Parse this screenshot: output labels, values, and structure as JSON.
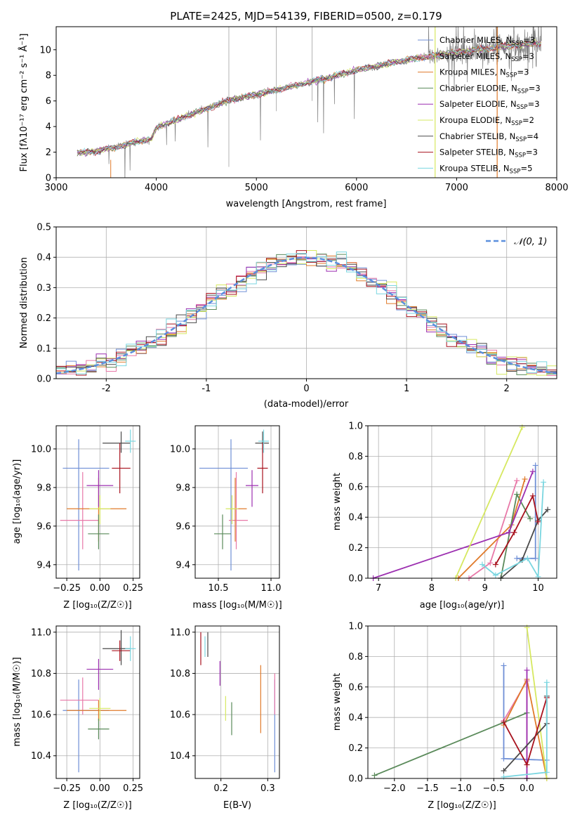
{
  "colors": {
    "Chabrier MILES": "#6f8fd6",
    "Salpeter MILES": "#e878a8",
    "Kroupa MILES": "#e07a2a",
    "Chabrier ELODIE": "#5a8a5a",
    "Salpeter ELODIE": "#9c2fb0",
    "Kroupa ELODIE": "#d6e860",
    "Chabrier STELIB": "#4a4a4a",
    "Salpeter STELIB": "#a8121e",
    "Kroupa STELIB": "#7ad6e0"
  },
  "chart_data": [
    {
      "id": "spectrum",
      "type": "line",
      "title": "PLATE=2425, MJD=54139, FIBERID=0500, z=0.179",
      "xlabel": "wavelength [Angstrom, rest frame]",
      "ylabel": "Flux [fλ10⁻¹⁷ erg cm⁻² s⁻¹ Å⁻¹]",
      "xlim": [
        3000,
        8000
      ],
      "ylim": [
        0,
        11.8
      ],
      "xticks": [
        3000,
        4000,
        5000,
        6000,
        7000,
        8000
      ],
      "yticks": [
        0,
        2,
        4,
        6,
        8,
        10
      ],
      "legend_placement": "top-right",
      "legend": [
        {
          "model": "Chabrier MILES",
          "label": "Chabrier MILES, N",
          "sub": "SSP",
          "suffix": "=3"
        },
        {
          "model": "Salpeter MILES",
          "label": "Salpeter MILES, N",
          "sub": "SSP",
          "suffix": "=3"
        },
        {
          "model": "Kroupa MILES",
          "label": "Kroupa MILES, N",
          "sub": "SSP",
          "suffix": "=3"
        },
        {
          "model": "Chabrier ELODIE",
          "label": "Chabrier ELODIE, N",
          "sub": "SSP",
          "suffix": "=3"
        },
        {
          "model": "Salpeter ELODIE",
          "label": "Salpeter ELODIE, N",
          "sub": "SSP",
          "suffix": "=3"
        },
        {
          "model": "Kroupa ELODIE",
          "label": "Kroupa ELODIE, N",
          "sub": "SSP",
          "suffix": "=2"
        },
        {
          "model": "Chabrier STELIB",
          "label": "Chabrier STELIB, N",
          "sub": "SSP",
          "suffix": "=4"
        },
        {
          "model": "Salpeter STELIB",
          "label": "Salpeter STELIB, N",
          "sub": "SSP",
          "suffix": "=3"
        },
        {
          "model": "Kroupa STELIB",
          "label": "Kroupa STELIB, N",
          "sub": "SSP",
          "suffix": "=5"
        }
      ],
      "continuum_x": [
        3200,
        3400,
        3600,
        3800,
        3950,
        4000,
        4300,
        4700,
        5000,
        5500,
        6000,
        6500,
        7000,
        7500,
        7800
      ],
      "continuum_y": [
        1.9,
        2.1,
        2.4,
        2.8,
        3.0,
        3.9,
        4.8,
        6.0,
        6.5,
        7.4,
        8.4,
        9.2,
        9.8,
        10.3,
        10.5
      ]
    },
    {
      "id": "residuals",
      "type": "step",
      "xlabel": "(data-model)/error",
      "ylabel": "Normed distribution",
      "xlim": [
        -2.5,
        2.5
      ],
      "ylim": [
        0,
        0.5
      ],
      "xticks": [
        -2,
        -1,
        0,
        1,
        2
      ],
      "yticks": [
        0.0,
        0.1,
        0.2,
        0.3,
        0.4,
        0.5
      ],
      "legend_placement": "top-right",
      "gaussian_label": "𝒩(0, 1)",
      "bin_start": -2.5,
      "bin_width": 0.1,
      "bin_count": 50
    },
    {
      "id": "age-vs-Z",
      "type": "errorbar",
      "xlabel": "Z [log₁₀(Z/Z☉)]",
      "ylabel": "age  [log₁₀(age/yr)]",
      "xlim": [
        -0.33,
        0.3
      ],
      "ylim": [
        9.33,
        10.12
      ],
      "xticks": [
        -0.25,
        0.0,
        0.25
      ],
      "xticklabels": [
        "−0.25",
        "0.00",
        "0.25"
      ],
      "yticks": [
        9.4,
        9.6,
        9.8,
        10.0
      ],
      "points": [
        {
          "model": "Chabrier MILES",
          "x": -0.16,
          "xerr": [
            0.12,
            0.23
          ],
          "y": 9.9,
          "yerr": [
            0.53,
            0.15
          ]
        },
        {
          "model": "Salpeter MILES",
          "x": -0.13,
          "xerr": [
            0.17,
            0.12
          ],
          "y": 9.63,
          "yerr": [
            0.15,
            0.25
          ]
        },
        {
          "model": "Kroupa MILES",
          "x": -0.01,
          "xerr": [
            0.24,
            0.21
          ],
          "y": 9.69,
          "yerr": [
            0.17,
            0.16
          ]
        },
        {
          "model": "Chabrier ELODIE",
          "x": -0.01,
          "xerr": [
            0.08,
            0.08
          ],
          "y": 9.56,
          "yerr": [
            0.08,
            0.1
          ]
        },
        {
          "model": "Salpeter ELODIE",
          "x": -0.01,
          "xerr": [
            0.09,
            0.11
          ],
          "y": 9.81,
          "yerr": [
            0.11,
            0.08
          ]
        },
        {
          "model": "Kroupa ELODIE",
          "x": 0.0,
          "xerr": [
            0.08,
            0.08
          ],
          "y": 9.69,
          "yerr": [
            0.08,
            0.07
          ]
        },
        {
          "model": "Chabrier STELIB",
          "x": 0.16,
          "xerr": [
            0.14,
            0.07
          ],
          "y": 10.03,
          "yerr": [
            0.05,
            0.06
          ]
        },
        {
          "model": "Salpeter STELIB",
          "x": 0.15,
          "xerr": [
            0.06,
            0.08
          ],
          "y": 9.9,
          "yerr": [
            0.13,
            0.13
          ]
        },
        {
          "model": "Kroupa STELIB",
          "x": 0.23,
          "xerr": [
            0.04,
            0.04
          ],
          "y": 10.04,
          "yerr": [
            0.06,
            0.06
          ]
        }
      ]
    },
    {
      "id": "age-vs-mass",
      "type": "errorbar",
      "xlabel": "mass [log₁₀(M/M☉)]",
      "ylabel": "",
      "xlim": [
        10.28,
        11.08
      ],
      "ylim": [
        9.33,
        10.12
      ],
      "xticks": [
        10.5,
        11.0
      ],
      "xticklabels": [
        "10.5",
        "11.0"
      ],
      "yticks": [
        9.4,
        9.6,
        9.8,
        10.0
      ],
      "points": [
        {
          "model": "Chabrier MILES",
          "x": 10.62,
          "xerr": [
            0.3,
            0.16
          ],
          "y": 9.9,
          "yerr": [
            0.53,
            0.15
          ]
        },
        {
          "model": "Salpeter MILES",
          "x": 10.67,
          "xerr": [
            0.07,
            0.11
          ],
          "y": 9.63,
          "yerr": [
            0.15,
            0.25
          ]
        },
        {
          "model": "Kroupa MILES",
          "x": 10.66,
          "xerr": [
            0.05,
            0.11
          ],
          "y": 9.69,
          "yerr": [
            0.17,
            0.16
          ]
        },
        {
          "model": "Chabrier ELODIE",
          "x": 10.54,
          "xerr": [
            0.08,
            0.08
          ],
          "y": 9.56,
          "yerr": [
            0.08,
            0.1
          ]
        },
        {
          "model": "Salpeter ELODIE",
          "x": 10.82,
          "xerr": [
            0.06,
            0.06
          ],
          "y": 9.81,
          "yerr": [
            0.11,
            0.08
          ]
        },
        {
          "model": "Kroupa ELODIE",
          "x": 10.63,
          "xerr": [
            0.06,
            0.06
          ],
          "y": 9.69,
          "yerr": [
            0.08,
            0.07
          ]
        },
        {
          "model": "Chabrier STELIB",
          "x": 10.92,
          "xerr": [
            0.07,
            0.06
          ],
          "y": 10.03,
          "yerr": [
            0.05,
            0.06
          ]
        },
        {
          "model": "Salpeter STELIB",
          "x": 10.92,
          "xerr": [
            0.05,
            0.05
          ],
          "y": 9.9,
          "yerr": [
            0.13,
            0.13
          ]
        },
        {
          "model": "Kroupa STELIB",
          "x": 10.93,
          "xerr": [
            0.05,
            0.05
          ],
          "y": 10.04,
          "yerr": [
            0.06,
            0.06
          ]
        }
      ]
    },
    {
      "id": "weight-vs-age",
      "type": "line",
      "xlabel": "age  [log₁₀(age/yr)]",
      "ylabel": "mass weight",
      "xlim": [
        6.8,
        10.35
      ],
      "ylim": [
        0,
        1
      ],
      "xticks": [
        7,
        8,
        9,
        10
      ],
      "yticks": [
        0.0,
        0.2,
        0.4,
        0.6,
        0.8,
        1.0
      ],
      "series": [
        {
          "model": "Chabrier MILES",
          "x": [
            9.6,
            9.95,
            9.95
          ],
          "y": [
            0.13,
            0.13,
            0.74
          ]
        },
        {
          "model": "Salpeter MILES",
          "x": [
            8.7,
            9.1,
            9.6
          ],
          "y": [
            0.0,
            0.1,
            0.64
          ]
        },
        {
          "model": "Kroupa MILES",
          "x": [
            8.5,
            9.5,
            9.75
          ],
          "y": [
            0.0,
            0.35,
            0.65
          ]
        },
        {
          "model": "Chabrier ELODIE",
          "x": [
            9.3,
            9.6,
            9.85
          ],
          "y": [
            0.0,
            0.55,
            0.39
          ]
        },
        {
          "model": "Salpeter ELODIE",
          "x": [
            6.9,
            9.45,
            9.9
          ],
          "y": [
            0.0,
            0.3,
            0.7
          ]
        },
        {
          "model": "Kroupa ELODIE",
          "x": [
            8.45,
            9.7
          ],
          "y": [
            0.0,
            0.99
          ]
        },
        {
          "model": "Chabrier STELIB",
          "x": [
            9.3,
            9.7,
            10.0,
            10.18
          ],
          "y": [
            0.0,
            0.12,
            0.38,
            0.45
          ]
        },
        {
          "model": "Salpeter STELIB",
          "x": [
            9.2,
            9.55,
            9.9,
            10.0
          ],
          "y": [
            0.09,
            0.3,
            0.54,
            0.37
          ]
        },
        {
          "model": "Kroupa STELIB",
          "x": [
            8.95,
            9.2,
            9.8,
            10.0,
            10.1
          ],
          "y": [
            0.09,
            0.02,
            0.13,
            0.01,
            0.63
          ]
        }
      ]
    },
    {
      "id": "mass-vs-Z",
      "type": "errorbar",
      "xlabel": "Z [log₁₀(Z/Z☉)]",
      "ylabel": "mass [log₁₀(M/M☉)]",
      "xlim": [
        -0.33,
        0.3
      ],
      "ylim": [
        10.29,
        11.03
      ],
      "xticks": [
        -0.25,
        0.0,
        0.25
      ],
      "xticklabels": [
        "−0.25",
        "0.00",
        "0.25"
      ],
      "yticks": [
        10.4,
        10.6,
        10.8,
        11.0
      ],
      "points": [
        {
          "model": "Chabrier MILES",
          "x": -0.16,
          "xerr": [
            0.12,
            0.23
          ],
          "y": 10.62,
          "yerr": [
            0.3,
            0.15
          ]
        },
        {
          "model": "Salpeter MILES",
          "x": -0.13,
          "xerr": [
            0.17,
            0.12
          ],
          "y": 10.67,
          "yerr": [
            0.07,
            0.11
          ]
        },
        {
          "model": "Kroupa MILES",
          "x": -0.01,
          "xerr": [
            0.24,
            0.21
          ],
          "y": 10.62,
          "yerr": [
            0.05,
            0.05
          ]
        },
        {
          "model": "Chabrier ELODIE",
          "x": -0.01,
          "xerr": [
            0.08,
            0.08
          ],
          "y": 10.53,
          "yerr": [
            0.05,
            0.05
          ]
        },
        {
          "model": "Salpeter ELODIE",
          "x": -0.01,
          "xerr": [
            0.09,
            0.11
          ],
          "y": 10.82,
          "yerr": [
            0.1,
            0.05
          ]
        },
        {
          "model": "Kroupa ELODIE",
          "x": 0.0,
          "xerr": [
            0.08,
            0.08
          ],
          "y": 10.63,
          "yerr": [
            0.06,
            0.05
          ]
        },
        {
          "model": "Chabrier STELIB",
          "x": 0.16,
          "xerr": [
            0.14,
            0.07
          ],
          "y": 10.92,
          "yerr": [
            0.08,
            0.09
          ]
        },
        {
          "model": "Salpeter STELIB",
          "x": 0.15,
          "xerr": [
            0.06,
            0.08
          ],
          "y": 10.91,
          "yerr": [
            0.05,
            0.05
          ]
        },
        {
          "model": "Kroupa STELIB",
          "x": 0.23,
          "xerr": [
            0.04,
            0.04
          ],
          "y": 10.92,
          "yerr": [
            0.06,
            0.06
          ]
        }
      ]
    },
    {
      "id": "mass-vs-ebv",
      "type": "errorbar",
      "xlabel": "E(B-V)",
      "ylabel": "",
      "xlim": [
        0.145,
        0.325
      ],
      "ylim": [
        10.29,
        11.03
      ],
      "xticks": [
        0.2,
        0.3
      ],
      "xticklabels": [
        "0.2",
        "0.3"
      ],
      "yticks": [
        10.4,
        10.6,
        10.8,
        11.0
      ],
      "points": [
        {
          "model": "Chabrier MILES",
          "x": 0.315,
          "y": 10.62,
          "yerr": [
            0.3,
            0.15
          ]
        },
        {
          "model": "Salpeter MILES",
          "x": 0.315,
          "y": 10.67,
          "yerr": [
            0.07,
            0.13
          ]
        },
        {
          "model": "Kroupa MILES",
          "x": 0.285,
          "y": 10.68,
          "yerr": [
            0.17,
            0.16
          ]
        },
        {
          "model": "Chabrier ELODIE",
          "x": 0.223,
          "y": 10.58,
          "yerr": [
            0.08,
            0.08
          ]
        },
        {
          "model": "Salpeter ELODIE",
          "x": 0.198,
          "y": 10.8,
          "yerr": [
            0.06,
            0.06
          ]
        },
        {
          "model": "Kroupa ELODIE",
          "x": 0.21,
          "y": 10.63,
          "yerr": [
            0.06,
            0.06
          ]
        },
        {
          "model": "Chabrier STELIB",
          "x": 0.172,
          "y": 10.94,
          "yerr": [
            0.06,
            0.06
          ]
        },
        {
          "model": "Salpeter STELIB",
          "x": 0.157,
          "y": 10.92,
          "yerr": [
            0.08,
            0.08
          ]
        },
        {
          "model": "Kroupa STELIB",
          "x": 0.166,
          "y": 10.93,
          "yerr": [
            0.05,
            0.05
          ]
        }
      ]
    },
    {
      "id": "weight-vs-Z",
      "type": "line",
      "xlabel": "Z [log₁₀(Z/Z☉)]",
      "ylabel": "mass weight",
      "xlim": [
        -2.4,
        0.45
      ],
      "ylim": [
        0,
        1
      ],
      "xticks": [
        -2.0,
        -1.5,
        -1.0,
        -0.5,
        0.0
      ],
      "xticklabels": [
        "−2.0",
        "−1.5",
        "−1.0",
        "−0.5",
        "0.0"
      ],
      "yticks": [
        0.0,
        0.2,
        0.4,
        0.6,
        0.8,
        1.0
      ],
      "series": [
        {
          "model": "Chabrier MILES",
          "x": [
            -0.35,
            -0.35,
            0.3
          ],
          "y": [
            0.74,
            0.13,
            0.12
          ]
        },
        {
          "model": "Salpeter MILES",
          "x": [
            -0.35,
            0.0,
            0.0
          ],
          "y": [
            0.38,
            0.64,
            0.0
          ]
        },
        {
          "model": "Kroupa MILES",
          "x": [
            -0.35,
            0.0,
            0.3
          ],
          "y": [
            0.35,
            0.65,
            0.0
          ]
        },
        {
          "model": "Chabrier ELODIE",
          "x": [
            -2.3,
            0.0
          ],
          "y": [
            0.02,
            0.43
          ]
        },
        {
          "model": "Salpeter ELODIE",
          "x": [
            0.0,
            0.0
          ],
          "y": [
            0.0,
            0.71
          ]
        },
        {
          "model": "Kroupa ELODIE",
          "x": [
            0.0,
            0.3
          ],
          "y": [
            0.99,
            0.0
          ]
        },
        {
          "model": "Chabrier STELIB",
          "x": [
            -0.35,
            0.3,
            0.3
          ],
          "y": [
            0.05,
            0.36,
            0.54
          ]
        },
        {
          "model": "Salpeter STELIB",
          "x": [
            -0.35,
            0.0,
            0.3
          ],
          "y": [
            0.37,
            0.09,
            0.53
          ]
        },
        {
          "model": "Kroupa STELIB",
          "x": [
            -0.35,
            0.3,
            0.3
          ],
          "y": [
            0.01,
            0.04,
            0.63
          ]
        }
      ]
    }
  ]
}
